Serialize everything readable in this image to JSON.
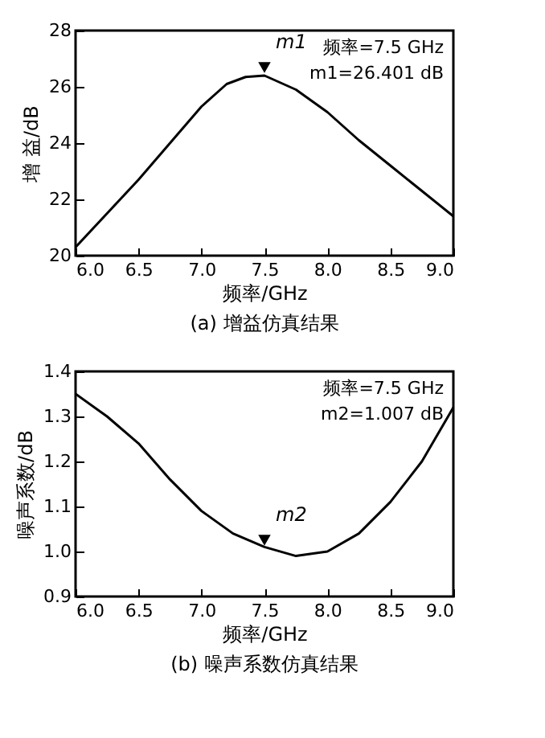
{
  "chart_data": [
    {
      "type": "line",
      "title": "(a)  增益仿真结果",
      "xlabel": "频率/GHz",
      "ylabel": "增 益/dB",
      "x": [
        6.0,
        6.25,
        6.5,
        6.75,
        7.0,
        7.2,
        7.35,
        7.5,
        7.75,
        8.0,
        8.25,
        8.5,
        8.75,
        9.0
      ],
      "series": [
        {
          "color": "#000000",
          "values": [
            20.3,
            21.5,
            22.7,
            24.0,
            25.3,
            26.1,
            26.35,
            26.4,
            25.9,
            25.1,
            24.1,
            23.2,
            22.3,
            21.4
          ]
        }
      ],
      "xlim": [
        6,
        9
      ],
      "xticks": [
        {
          "value": 6,
          "label": "6.0"
        },
        6.5,
        {
          "value": 7,
          "label": "7.0"
        },
        7.5,
        {
          "value": 8,
          "label": "8.0"
        },
        8.5,
        {
          "value": 9,
          "label": "9.0"
        }
      ],
      "ylim": [
        20,
        28
      ],
      "yticks": [
        20,
        22,
        24,
        26,
        28
      ],
      "grid": false,
      "annotations": [
        {
          "text": "m1",
          "x": 7.5,
          "y": 26.401
        },
        "频率=7.5 GHz",
        "m1=26.401 dB"
      ]
    },
    {
      "type": "line",
      "title": "(b)  噪声系数仿真结果",
      "xlabel": "频率/GHz",
      "ylabel": "噪声系数/dB",
      "x": [
        6.0,
        6.25,
        6.5,
        6.75,
        7.0,
        7.25,
        7.5,
        7.75,
        8.0,
        8.25,
        8.5,
        8.75,
        9.0
      ],
      "series": [
        {
          "color": "#000000",
          "values": [
            1.35,
            1.3,
            1.24,
            1.16,
            1.09,
            1.04,
            1.01,
            0.99,
            1.0,
            1.04,
            1.11,
            1.2,
            1.32
          ]
        }
      ],
      "xlim": [
        6,
        9
      ],
      "xticks": [
        {
          "value": 6,
          "label": "6.0"
        },
        6.5,
        {
          "value": 7,
          "label": "7.0"
        },
        7.5,
        {
          "value": 8,
          "label": "8.0"
        },
        8.5,
        {
          "value": 9,
          "label": "9.0"
        }
      ],
      "ylim": [
        0.9,
        1.4
      ],
      "yticks": [
        {
          "value": 0.9,
          "label": "0.9"
        },
        {
          "value": 1,
          "label": "1.0"
        },
        1.1,
        1.2,
        1.3,
        1.4
      ],
      "grid": false,
      "annotations": [
        {
          "text": "m2",
          "x": 7.5,
          "y": 1.007
        },
        "频率=7.5 GHz",
        "m2=1.007 dB"
      ]
    }
  ]
}
